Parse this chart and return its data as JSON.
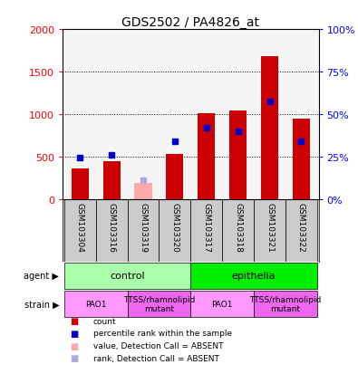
{
  "title": "GDS2502 / PA4826_at",
  "samples": [
    "GSM103304",
    "GSM103316",
    "GSM103319",
    "GSM103320",
    "GSM103317",
    "GSM103318",
    "GSM103321",
    "GSM103322"
  ],
  "counts": [
    370,
    450,
    0,
    540,
    1010,
    1050,
    1680,
    950
  ],
  "absent_counts": [
    0,
    0,
    200,
    0,
    0,
    0,
    0,
    0
  ],
  "rank_values": [
    490,
    530,
    0,
    690,
    840,
    800,
    1150,
    690
  ],
  "absent_rank_values": [
    0,
    0,
    230,
    0,
    0,
    0,
    0,
    0
  ],
  "is_absent": [
    false,
    false,
    true,
    false,
    false,
    false,
    false,
    false
  ],
  "ylim_left": [
    0,
    2000
  ],
  "ylim_right": [
    0,
    100
  ],
  "yticks_left": [
    0,
    500,
    1000,
    1500,
    2000
  ],
  "yticks_right": [
    0,
    25,
    50,
    75,
    100
  ],
  "ytick_labels_left": [
    "0",
    "500",
    "1000",
    "1500",
    "2000"
  ],
  "ytick_labels_right": [
    "0%",
    "25%",
    "50%",
    "75%",
    "100%"
  ],
  "agent_groups": [
    {
      "label": "control",
      "start": 0,
      "end": 4,
      "color": "#aaffaa"
    },
    {
      "label": "epithelia",
      "start": 4,
      "end": 8,
      "color": "#00ee00"
    }
  ],
  "strain_groups": [
    {
      "label": "PAO1",
      "start": 0,
      "end": 2,
      "color": "#ff99ff"
    },
    {
      "label": "TTSS/rhamnolipid\nmutant",
      "start": 2,
      "end": 4,
      "color": "#ee66ee"
    },
    {
      "label": "PAO1",
      "start": 4,
      "end": 6,
      "color": "#ff99ff"
    },
    {
      "label": "TTSS/rhamnolipid\nmutant",
      "start": 6,
      "end": 8,
      "color": "#ee66ee"
    }
  ],
  "bar_color_present": "#cc0000",
  "bar_color_absent": "#ffaaaa",
  "rank_color_present": "#0000cc",
  "rank_color_absent": "#aaaadd",
  "bar_width": 0.55,
  "background_color": "#ffffff",
  "plot_bg": "#f5f5f5",
  "xlab_bg": "#cccccc"
}
